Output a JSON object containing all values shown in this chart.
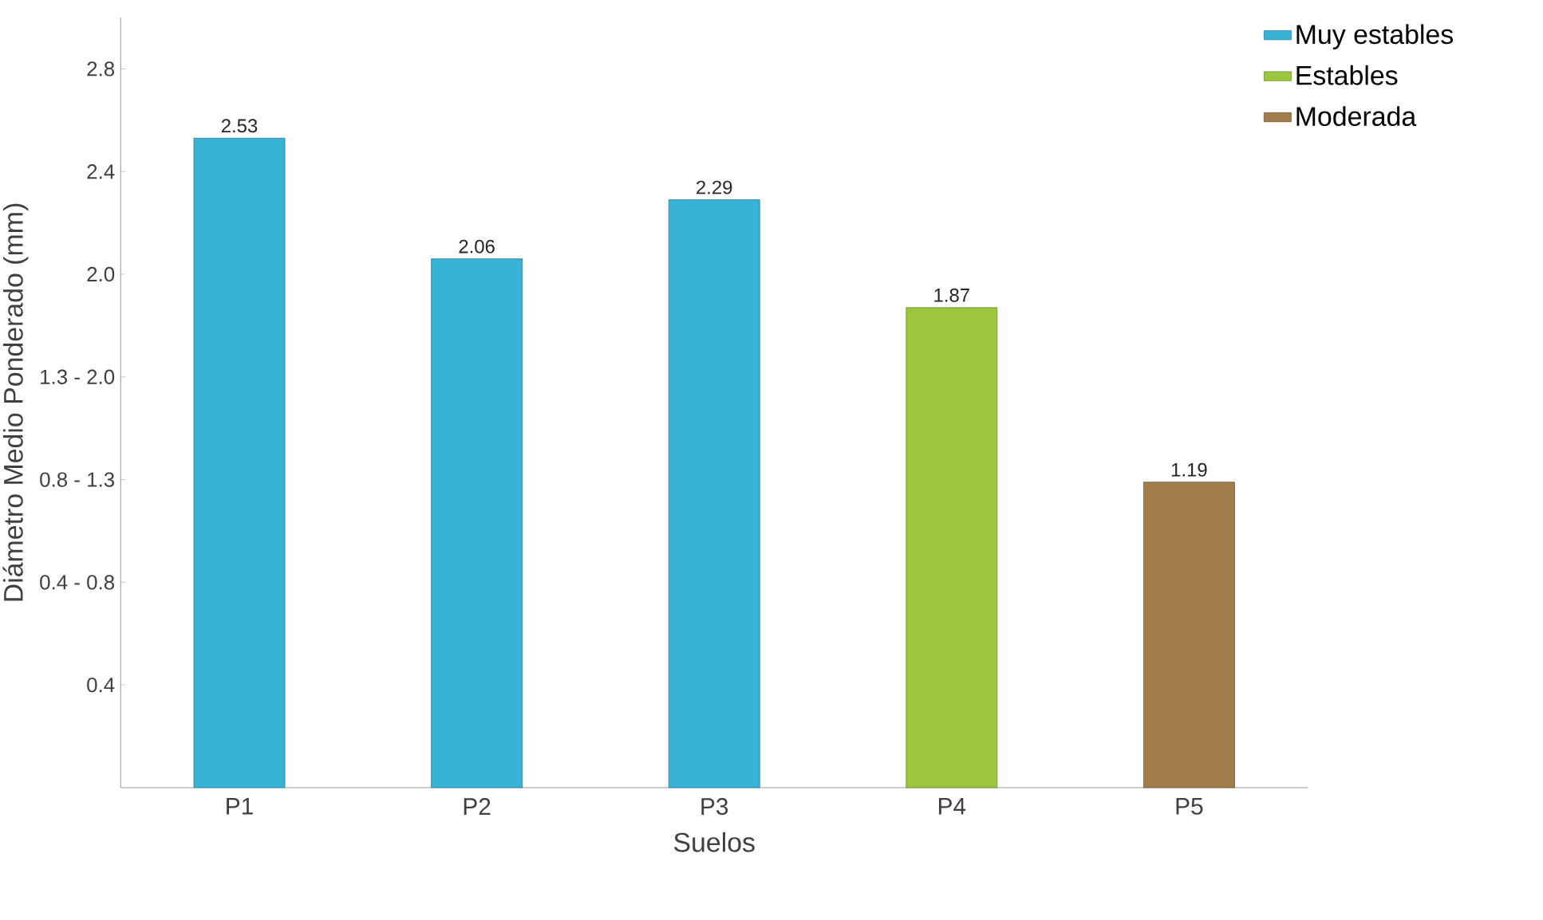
{
  "chart_data": {
    "type": "bar",
    "xlabel": "Suelos",
    "ylabel": "Diámetro Medio Ponderado (mm)",
    "categories": [
      "P1",
      "P2",
      "P3",
      "P4",
      "P5"
    ],
    "series": [
      {
        "name": "Muy estables",
        "color": "#38b2d6",
        "values": [
          2.53,
          2.06,
          2.29,
          null,
          null
        ]
      },
      {
        "name": "Estables",
        "color": "#9cc63e",
        "values": [
          null,
          null,
          null,
          1.87,
          null
        ]
      },
      {
        "name": "Moderada",
        "color": "#a37c4c",
        "values": [
          null,
          null,
          null,
          null,
          1.19
        ]
      }
    ],
    "ylim": [
      0,
      3.0
    ],
    "yticks": [
      {
        "value": 0.4,
        "label": "0.4"
      },
      {
        "value": 0.8,
        "label": "0.4 - 0.8"
      },
      {
        "value": 1.2,
        "label": "0.8 - 1.3"
      },
      {
        "value": 1.6,
        "label": "1.3 - 2.0"
      },
      {
        "value": 2.0,
        "label": "2.0"
      },
      {
        "value": 2.4,
        "label": "2.4"
      },
      {
        "value": 2.8,
        "label": "2.8"
      }
    ],
    "data_labels": true,
    "legend": "top right",
    "grid": false
  }
}
